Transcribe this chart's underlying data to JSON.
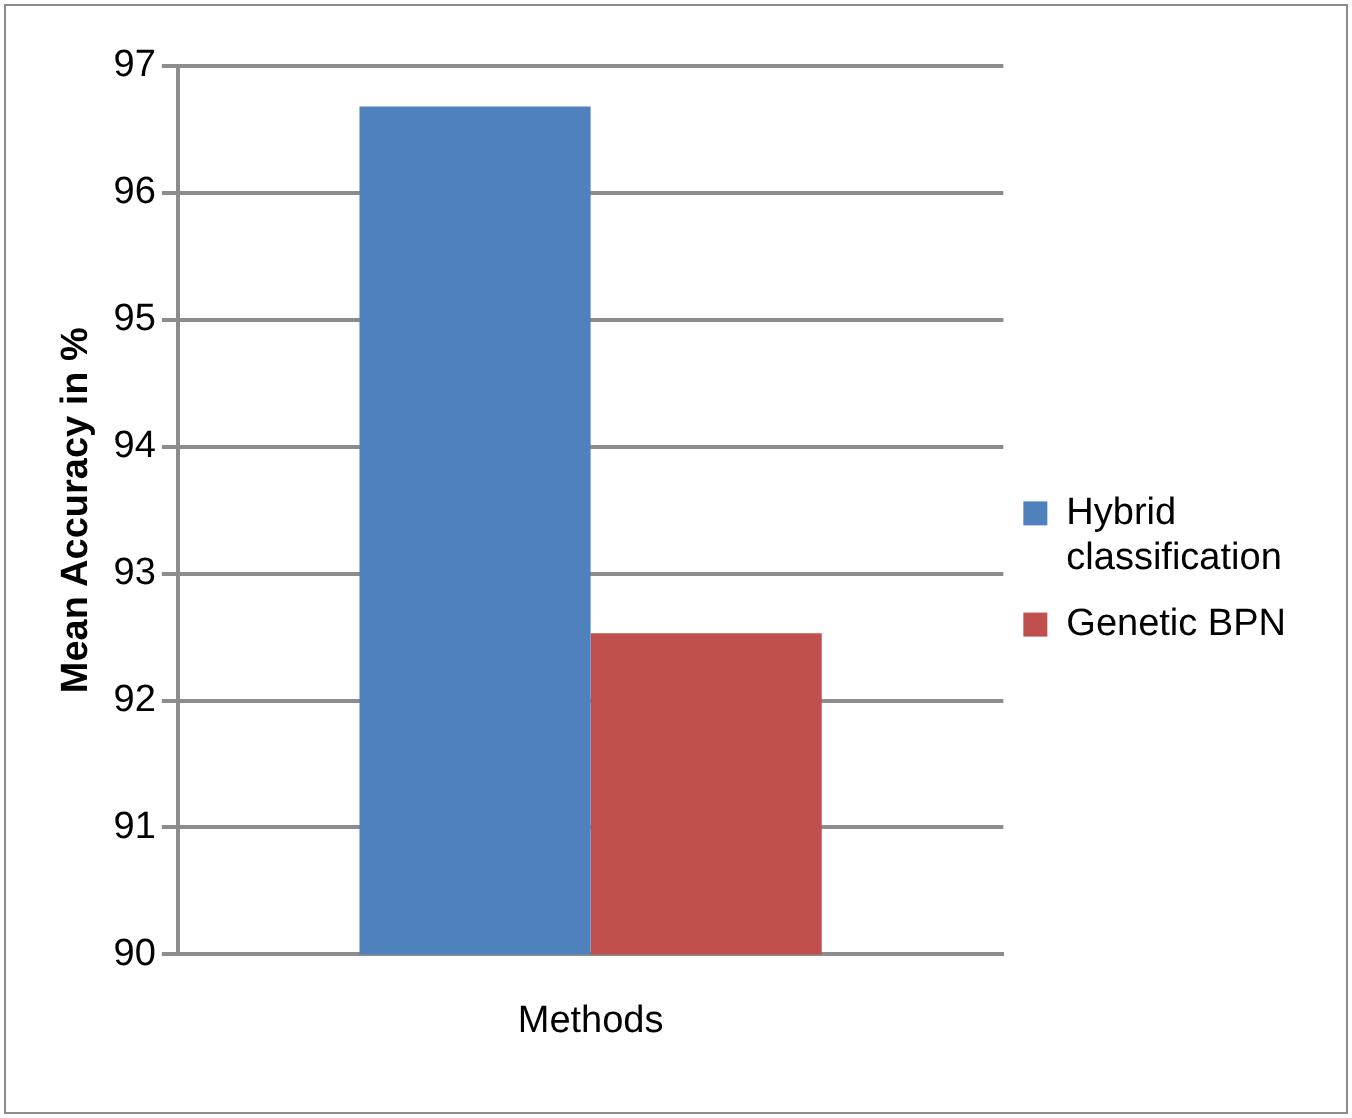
{
  "chart_data": {
    "type": "bar",
    "ylabel": "Mean Accuracy in %",
    "categories": [
      "Methods"
    ],
    "series": [
      {
        "name": "Hybrid classification",
        "color": "#4f81bd",
        "values": [
          96.68
        ]
      },
      {
        "name": "Genetic BPN",
        "color": "#c0504d",
        "values": [
          92.53
        ]
      }
    ],
    "ylim": [
      90,
      97
    ],
    "yticks": [
      90,
      91,
      92,
      93,
      94,
      95,
      96,
      97
    ],
    "grid": "y",
    "legend": "right"
  }
}
